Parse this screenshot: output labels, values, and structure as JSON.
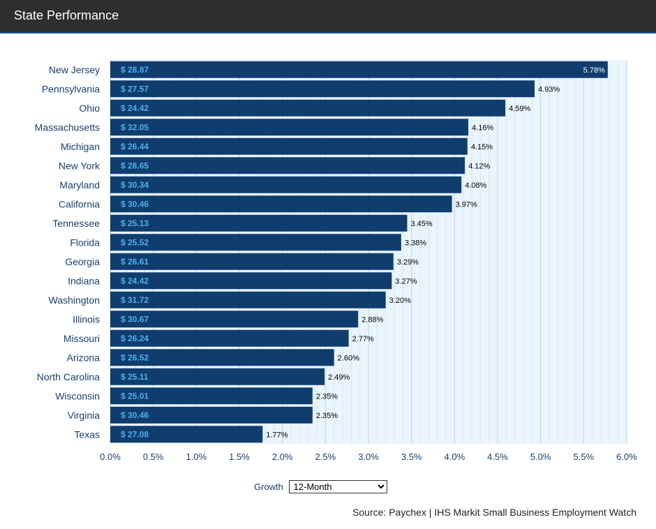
{
  "header": {
    "title": "State Performance"
  },
  "controls": {
    "growth_label": "Growth",
    "selected_option": "12-Month"
  },
  "source": "Source: Paychex | IHS Markit Small Business Employment Watch",
  "colors": {
    "bar": "#0f3d6e",
    "wage_label": "#4fb0ec",
    "plot_bg": "#eaf4fc",
    "grid_major": "#b9d6ee",
    "grid_minor": "#d6e7f5",
    "axis_text": "#17406d"
  },
  "chart_data": {
    "type": "bar",
    "orientation": "horizontal",
    "title": "",
    "xlabel": "",
    "ylabel": "",
    "xlim": [
      0,
      6
    ],
    "x_ticks": [
      "0.0%",
      "0.5%",
      "1.0%",
      "1.5%",
      "2.0%",
      "2.5%",
      "3.0%",
      "3.5%",
      "4.0%",
      "4.5%",
      "5.0%",
      "5.5%",
      "6.0%"
    ],
    "categories": [
      "New Jersey",
      "Pennsylvania",
      "Ohio",
      "Massachusetts",
      "Michigan",
      "New York",
      "Maryland",
      "California",
      "Tennessee",
      "Florida",
      "Georgia",
      "Indiana",
      "Washington",
      "Illinois",
      "Missouri",
      "Arizona",
      "North Carolina",
      "Wisconsin",
      "Virginia",
      "Texas"
    ],
    "values": [
      5.78,
      4.93,
      4.59,
      4.16,
      4.15,
      4.12,
      4.08,
      3.97,
      3.45,
      3.38,
      3.29,
      3.27,
      3.2,
      2.88,
      2.77,
      2.6,
      2.49,
      2.35,
      2.35,
      1.77
    ],
    "value_labels": [
      "5.78%",
      "4.93%",
      "4.59%",
      "4.16%",
      "4.15%",
      "4.12%",
      "4.08%",
      "3.97%",
      "3.45%",
      "3.38%",
      "3.29%",
      "3.27%",
      "3.20%",
      "2.88%",
      "2.77%",
      "2.60%",
      "2.49%",
      "2.35%",
      "2.35%",
      "1.77%"
    ],
    "wage_labels": [
      "$ 28.87",
      "$ 27.57",
      "$ 24.42",
      "$ 32.05",
      "$ 26.44",
      "$ 28.65",
      "$ 30.34",
      "$ 30.46",
      "$ 25.13",
      "$ 25.52",
      "$ 26.61",
      "$ 24.42",
      "$ 31.72",
      "$ 30.67",
      "$ 26.24",
      "$ 26.52",
      "$ 25.11",
      "$ 25.01",
      "$ 30.46",
      "$ 27.08"
    ],
    "grid": true,
    "legend": "none"
  }
}
